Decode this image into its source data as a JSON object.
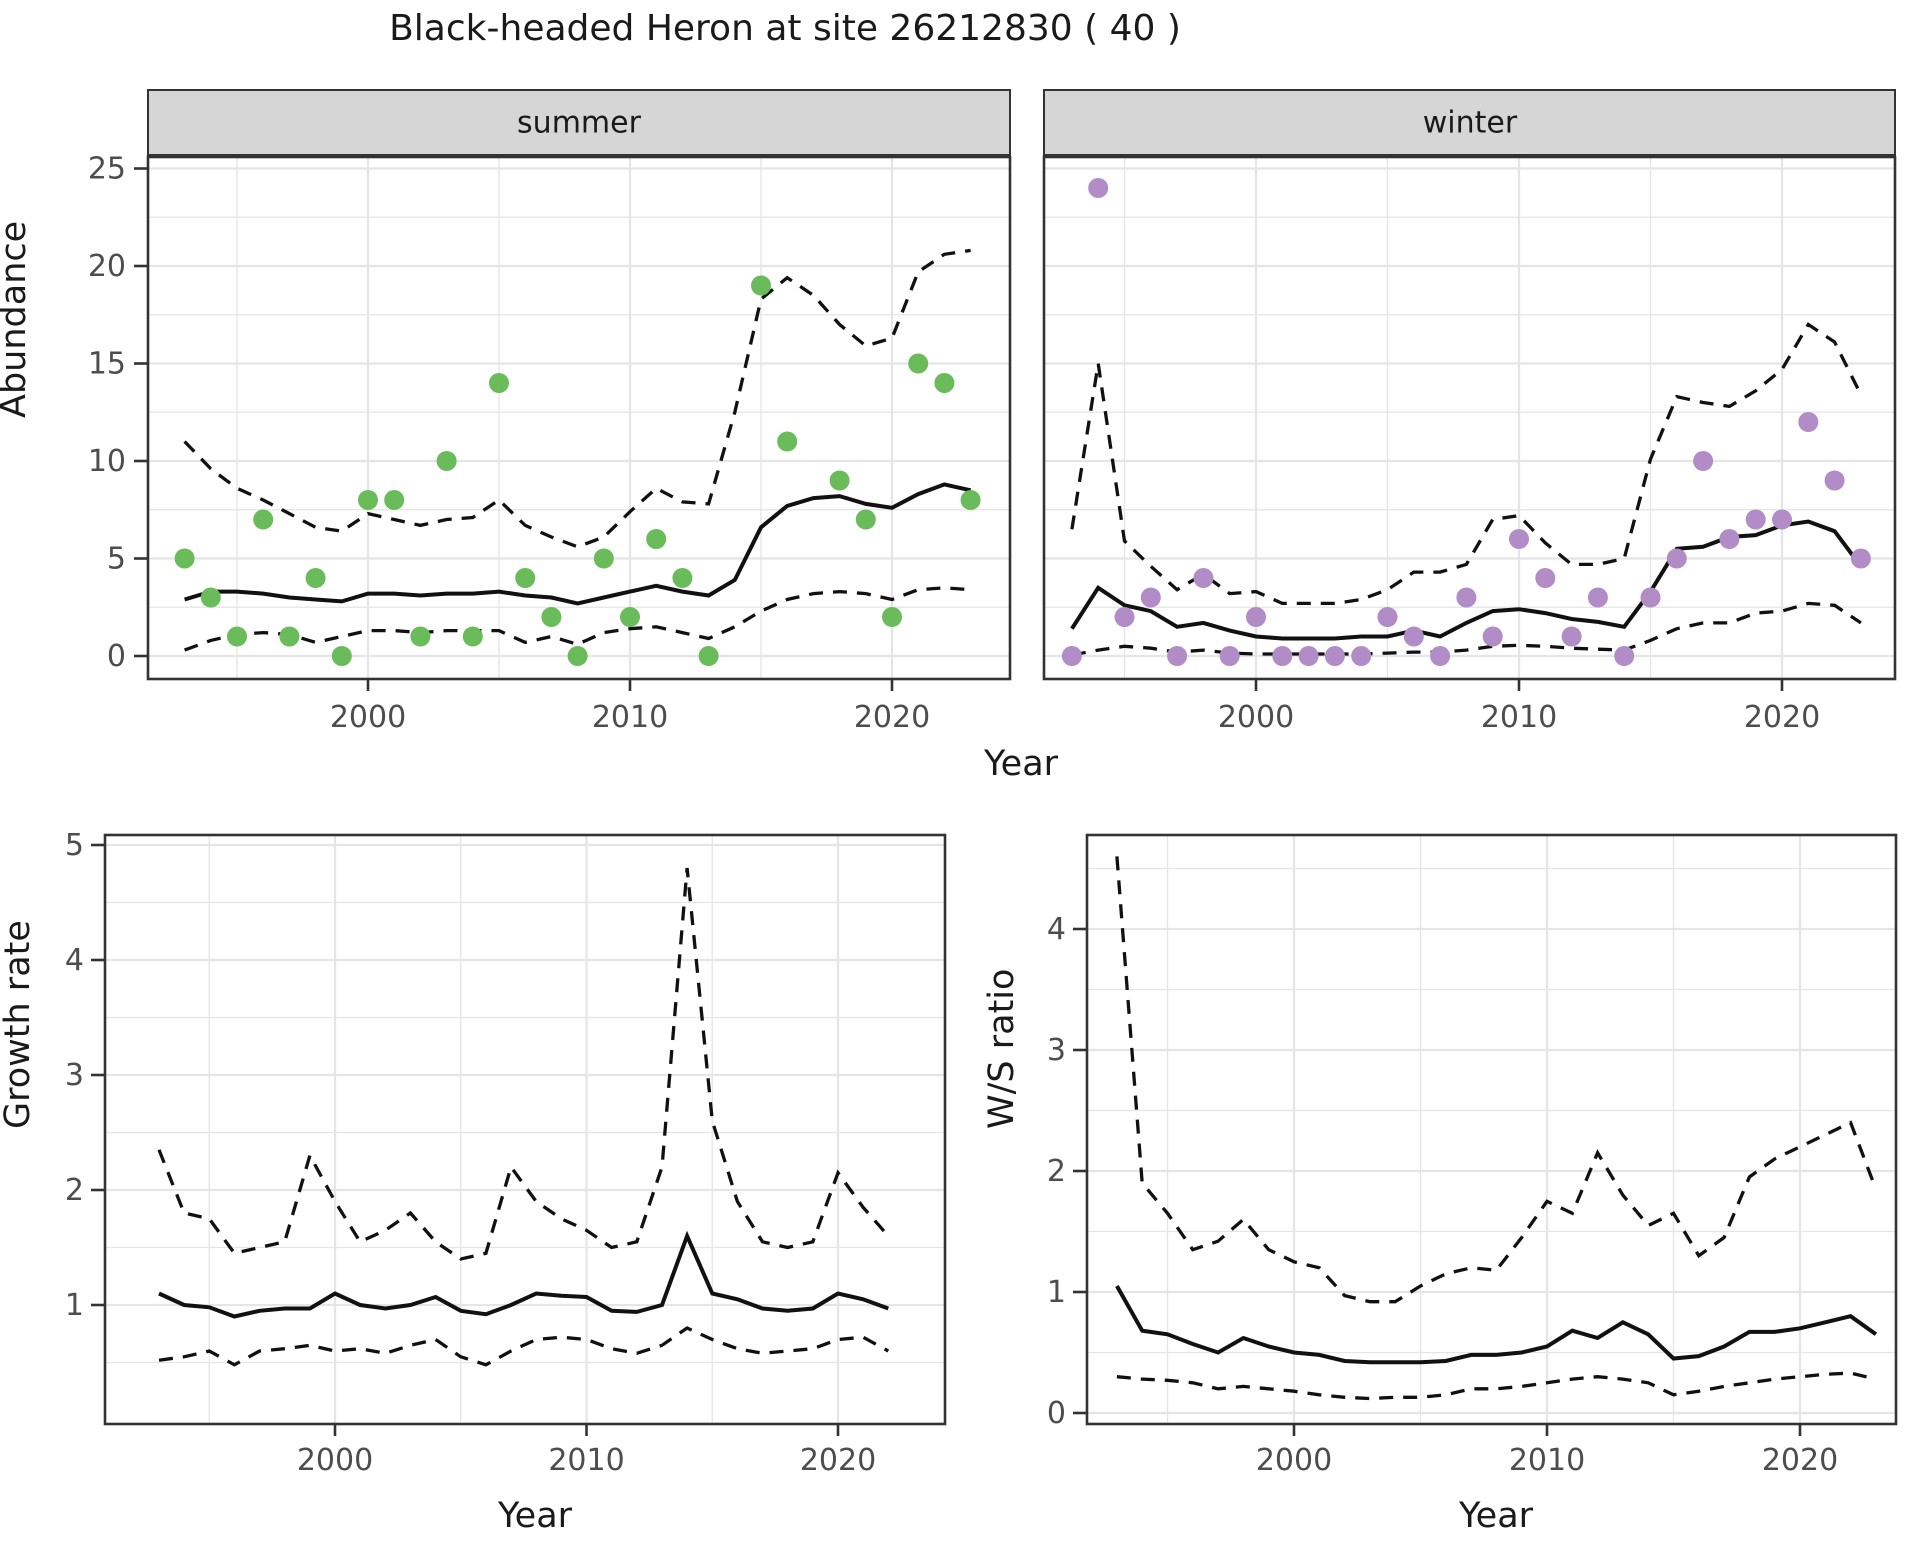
{
  "title": "Black-headed Heron at site 26212830 ( 40 )",
  "facets": {
    "summer": "summer",
    "winter": "winter"
  },
  "axis_titles": {
    "abundance": "Abundance",
    "year_top": "Year",
    "growth_rate": "Growth rate",
    "ws_ratio": "W/S ratio",
    "year_growth": "Year",
    "year_ws": "Year"
  },
  "colors": {
    "summer_point": "#6abc5b",
    "winter_point": "#b18cc6",
    "line": "#111111",
    "grid": "#e5e5e5",
    "panel_border": "#333333",
    "strip_bg": "#d6d6d6",
    "tick_label": "#4d4d4d"
  },
  "chart_data": [
    {
      "id": "abundance-summer",
      "type": "scatter",
      "facet": "summer",
      "ylabel": "Abundance",
      "xlabel": "Year",
      "x_ticks": [
        2000,
        2010,
        2020
      ],
      "x_minor": [
        1995,
        2005,
        2015
      ],
      "y_ticks": [
        0,
        5,
        10,
        15,
        20,
        25
      ],
      "y_minor": [
        2.5,
        7.5,
        12.5,
        17.5,
        22.5
      ],
      "show_y_tick_labels": true,
      "ylim": [
        -1.2,
        25.6
      ],
      "xlim": [
        1991.6,
        2024.5
      ],
      "points": {
        "years": [
          1993,
          1994,
          1995,
          1996,
          1997,
          1998,
          1999,
          2000,
          2001,
          2002,
          2003,
          2004,
          2005,
          2006,
          2007,
          2008,
          2009,
          2010,
          2011,
          2012,
          2013,
          2015,
          2016,
          2018,
          2019,
          2020,
          2021,
          2022,
          2023
        ],
        "values": [
          5,
          3,
          1,
          7,
          1,
          4,
          0,
          8,
          8,
          1,
          10,
          1,
          14,
          4,
          2,
          0,
          5,
          2,
          6,
          4,
          0,
          19,
          11,
          9,
          7,
          2,
          15,
          14,
          8
        ]
      },
      "fit": {
        "years": [
          1993,
          1994,
          1995,
          1996,
          1997,
          1998,
          1999,
          2000,
          2001,
          2002,
          2003,
          2004,
          2005,
          2006,
          2007,
          2008,
          2009,
          2010,
          2011,
          2012,
          2013,
          2014,
          2015,
          2016,
          2017,
          2018,
          2019,
          2020,
          2021,
          2022,
          2023
        ],
        "values": [
          2.9,
          3.3,
          3.3,
          3.2,
          3.0,
          2.9,
          2.8,
          3.2,
          3.2,
          3.1,
          3.2,
          3.2,
          3.3,
          3.1,
          3.0,
          2.7,
          3.0,
          3.3,
          3.6,
          3.3,
          3.1,
          3.9,
          6.6,
          7.7,
          8.1,
          8.2,
          7.8,
          7.6,
          8.3,
          8.8,
          8.5
        ]
      },
      "ci_upper": {
        "years": [
          1993,
          1994,
          1995,
          1996,
          1997,
          1998,
          1999,
          2000,
          2001,
          2002,
          2003,
          2004,
          2005,
          2006,
          2007,
          2008,
          2009,
          2010,
          2011,
          2012,
          2013,
          2014,
          2015,
          2016,
          2017,
          2018,
          2019,
          2020,
          2021,
          2022,
          2023
        ],
        "values": [
          11.0,
          9.6,
          8.6,
          8.0,
          7.3,
          6.6,
          6.4,
          7.3,
          7.0,
          6.7,
          7.0,
          7.1,
          8.0,
          6.7,
          6.1,
          5.6,
          6.1,
          7.4,
          8.6,
          7.9,
          7.8,
          12.5,
          18.3,
          19.4,
          18.5,
          17.0,
          15.9,
          16.3,
          19.7,
          20.6,
          20.8
        ]
      },
      "ci_lower": {
        "years": [
          1993,
          1994,
          1995,
          1996,
          1997,
          1998,
          1999,
          2000,
          2001,
          2002,
          2003,
          2004,
          2005,
          2006,
          2007,
          2008,
          2009,
          2010,
          2011,
          2012,
          2013,
          2014,
          2015,
          2016,
          2017,
          2018,
          2019,
          2020,
          2021,
          2022,
          2023
        ],
        "values": [
          0.3,
          0.8,
          1.1,
          1.2,
          1.1,
          0.7,
          1.0,
          1.3,
          1.3,
          1.2,
          1.3,
          1.3,
          1.3,
          0.7,
          1.0,
          0.6,
          1.2,
          1.4,
          1.5,
          1.2,
          0.9,
          1.5,
          2.3,
          2.9,
          3.2,
          3.3,
          3.2,
          2.9,
          3.4,
          3.5,
          3.4
        ]
      }
    },
    {
      "id": "abundance-winter",
      "type": "scatter",
      "facet": "winter",
      "ylabel": "Abundance",
      "xlabel": "Year",
      "x_ticks": [
        2000,
        2010,
        2020
      ],
      "x_minor": [
        1995,
        2005,
        2015
      ],
      "y_ticks": [
        0,
        5,
        10,
        15,
        20,
        25
      ],
      "y_minor": [
        2.5,
        7.5,
        12.5,
        17.5,
        22.5
      ],
      "show_y_tick_labels": false,
      "ylim": [
        -1.2,
        25.6
      ],
      "xlim": [
        1991.6,
        2024.5
      ],
      "points": {
        "years": [
          1993,
          1994,
          1995,
          1996,
          1997,
          1998,
          1999,
          2000,
          2001,
          2002,
          2003,
          2004,
          2005,
          2006,
          2007,
          2008,
          2009,
          2010,
          2011,
          2012,
          2013,
          2014,
          2015,
          2016,
          2017,
          2018,
          2019,
          2020,
          2021,
          2022,
          2023
        ],
        "values": [
          0,
          24,
          2,
          3,
          0,
          4,
          0,
          2,
          0,
          0,
          0,
          0,
          2,
          1,
          0,
          3,
          1,
          6,
          4,
          1,
          3,
          0,
          3,
          5,
          10,
          6,
          7,
          7,
          12,
          9,
          5
        ]
      },
      "fit": {
        "years": [
          1993,
          1994,
          1995,
          1996,
          1997,
          1998,
          1999,
          2000,
          2001,
          2002,
          2003,
          2004,
          2005,
          2006,
          2007,
          2008,
          2009,
          2010,
          2011,
          2012,
          2013,
          2014,
          2015,
          2016,
          2017,
          2018,
          2019,
          2020,
          2021,
          2022,
          2023
        ],
        "values": [
          1.4,
          3.5,
          2.6,
          2.3,
          1.5,
          1.7,
          1.3,
          1.0,
          0.9,
          0.9,
          0.9,
          1.0,
          1.0,
          1.3,
          1.0,
          1.7,
          2.3,
          2.4,
          2.2,
          1.9,
          1.75,
          1.5,
          3.3,
          5.5,
          5.6,
          6.1,
          6.2,
          6.7,
          6.9,
          6.4,
          4.6
        ]
      },
      "ci_upper": {
        "years": [
          1993,
          1994,
          1995,
          1996,
          1997,
          1998,
          1999,
          2000,
          2001,
          2002,
          2003,
          2004,
          2005,
          2006,
          2007,
          2008,
          2009,
          2010,
          2011,
          2012,
          2013,
          2014,
          2015,
          2016,
          2017,
          2018,
          2019,
          2020,
          2021,
          2022,
          2023
        ],
        "values": [
          6.5,
          15.0,
          5.9,
          4.6,
          3.4,
          4.2,
          3.2,
          3.3,
          2.7,
          2.7,
          2.7,
          2.9,
          3.4,
          4.3,
          4.3,
          4.7,
          7.0,
          7.2,
          5.8,
          4.7,
          4.7,
          5.0,
          10.1,
          13.3,
          13.0,
          12.8,
          13.6,
          14.7,
          17.0,
          16.1,
          13.4
        ]
      },
      "ci_lower": {
        "years": [
          1993,
          1994,
          1995,
          1996,
          1997,
          1998,
          1999,
          2000,
          2001,
          2002,
          2003,
          2004,
          2005,
          2006,
          2007,
          2008,
          2009,
          2010,
          2011,
          2012,
          2013,
          2014,
          2015,
          2016,
          2017,
          2018,
          2019,
          2020,
          2021,
          2022,
          2023
        ],
        "values": [
          0.05,
          0.3,
          0.5,
          0.4,
          0.2,
          0.3,
          0.15,
          0.1,
          0.1,
          0.1,
          0.1,
          0.1,
          0.15,
          0.2,
          0.2,
          0.3,
          0.5,
          0.55,
          0.5,
          0.4,
          0.35,
          0.3,
          0.8,
          1.4,
          1.7,
          1.7,
          2.2,
          2.3,
          2.7,
          2.6,
          1.7
        ]
      }
    },
    {
      "id": "growth-rate",
      "type": "line",
      "facet": null,
      "ylabel": "Growth rate",
      "xlabel": "Year",
      "x_ticks": [
        2000,
        2010,
        2020
      ],
      "x_minor": [
        1995,
        2005,
        2015
      ],
      "y_ticks": [
        1,
        2,
        3,
        4,
        5
      ],
      "y_minor": [
        0.5,
        1.5,
        2.5,
        3.5,
        4.5
      ],
      "show_y_tick_labels": true,
      "ylim": [
        0.35,
        5.1
      ],
      "xlim": [
        1991.6,
        2024.2
      ],
      "points": null,
      "fit": {
        "years": [
          1993,
          1994,
          1995,
          1996,
          1997,
          1998,
          1999,
          2000,
          2001,
          2002,
          2003,
          2004,
          2005,
          2006,
          2007,
          2008,
          2009,
          2010,
          2011,
          2012,
          2013,
          2014,
          2015,
          2016,
          2017,
          2018,
          2019,
          2020,
          2021,
          2022
        ],
        "values": [
          1.1,
          1.0,
          0.98,
          0.9,
          0.95,
          0.97,
          0.97,
          1.1,
          1.0,
          0.97,
          1.0,
          1.07,
          0.95,
          0.92,
          1.0,
          1.1,
          1.08,
          1.07,
          0.95,
          0.94,
          1.0,
          1.6,
          1.1,
          1.05,
          0.97,
          0.95,
          0.97,
          1.1,
          1.05,
          0.97
        ]
      },
      "ci_upper": {
        "years": [
          1993,
          1994,
          1995,
          1996,
          1997,
          1998,
          1999,
          2000,
          2001,
          2002,
          2003,
          2004,
          2005,
          2006,
          2007,
          2008,
          2009,
          2010,
          2011,
          2012,
          2013,
          2014,
          2015,
          2016,
          2017,
          2018,
          2019,
          2020,
          2021,
          2022
        ],
        "values": [
          2.35,
          1.8,
          1.75,
          1.45,
          1.5,
          1.55,
          2.3,
          1.9,
          1.55,
          1.65,
          1.8,
          1.55,
          1.4,
          1.45,
          2.2,
          1.9,
          1.75,
          1.65,
          1.5,
          1.55,
          2.2,
          4.8,
          2.6,
          1.9,
          1.55,
          1.5,
          1.55,
          2.15,
          1.85,
          1.6
        ]
      },
      "ci_lower": {
        "years": [
          1993,
          1994,
          1995,
          1996,
          1997,
          1998,
          1999,
          2000,
          2001,
          2002,
          2003,
          2004,
          2005,
          2006,
          2007,
          2008,
          2009,
          2010,
          2011,
          2012,
          2013,
          2014,
          2015,
          2016,
          2017,
          2018,
          2019,
          2020,
          2021,
          2022
        ],
        "values": [
          0.52,
          0.55,
          0.6,
          0.48,
          0.6,
          0.62,
          0.65,
          0.6,
          0.62,
          0.58,
          0.65,
          0.7,
          0.55,
          0.48,
          0.6,
          0.7,
          0.72,
          0.7,
          0.62,
          0.58,
          0.65,
          0.8,
          0.7,
          0.62,
          0.58,
          0.6,
          0.62,
          0.7,
          0.72,
          0.6
        ]
      }
    },
    {
      "id": "ws-ratio",
      "type": "line",
      "facet": null,
      "ylabel": "W/S ratio",
      "xlabel": "Year",
      "x_ticks": [
        2000,
        2010,
        2020
      ],
      "x_minor": [
        1995,
        2005,
        2015
      ],
      "y_ticks": [
        0,
        1,
        2,
        3,
        4
      ],
      "y_minor": [
        0.5,
        1.5,
        2.5,
        3.5,
        4.5
      ],
      "show_y_tick_labels": true,
      "ylim": [
        -0.1,
        4.8
      ],
      "xlim": [
        1991.8,
        2024.9
      ],
      "points": null,
      "fit": {
        "years": [
          1993,
          1994,
          1995,
          1996,
          1997,
          1998,
          1999,
          2000,
          2001,
          2002,
          2003,
          2004,
          2005,
          2006,
          2007,
          2008,
          2009,
          2010,
          2011,
          2012,
          2013,
          2014,
          2015,
          2016,
          2017,
          2018,
          2019,
          2020,
          2021,
          2022,
          2023
        ],
        "values": [
          1.05,
          0.68,
          0.65,
          0.57,
          0.5,
          0.62,
          0.55,
          0.5,
          0.48,
          0.43,
          0.42,
          0.42,
          0.42,
          0.43,
          0.48,
          0.48,
          0.5,
          0.55,
          0.68,
          0.62,
          0.75,
          0.65,
          0.45,
          0.47,
          0.55,
          0.67,
          0.67,
          0.7,
          0.75,
          0.8,
          0.65
        ]
      },
      "ci_upper": {
        "years": [
          1993,
          1994,
          1995,
          1996,
          1997,
          1998,
          1999,
          2000,
          2001,
          2002,
          2003,
          2004,
          2005,
          2006,
          2007,
          2008,
          2009,
          2010,
          2011,
          2012,
          2013,
          2014,
          2015,
          2016,
          2017,
          2018,
          2019,
          2020,
          2021,
          2022,
          2023
        ],
        "values": [
          4.6,
          1.9,
          1.65,
          1.35,
          1.42,
          1.6,
          1.35,
          1.25,
          1.2,
          0.97,
          0.92,
          0.92,
          1.05,
          1.15,
          1.2,
          1.18,
          1.45,
          1.75,
          1.65,
          2.15,
          1.8,
          1.55,
          1.65,
          1.3,
          1.45,
          1.95,
          2.1,
          2.2,
          2.3,
          2.4,
          1.85
        ]
      },
      "ci_lower": {
        "years": [
          1993,
          1994,
          1995,
          1996,
          1997,
          1998,
          1999,
          2000,
          2001,
          2002,
          2003,
          2004,
          2005,
          2006,
          2007,
          2008,
          2009,
          2010,
          2011,
          2012,
          2013,
          2014,
          2015,
          2016,
          2017,
          2018,
          2019,
          2020,
          2021,
          2022,
          2023
        ],
        "values": [
          0.3,
          0.28,
          0.27,
          0.25,
          0.2,
          0.22,
          0.2,
          0.18,
          0.15,
          0.13,
          0.12,
          0.13,
          0.13,
          0.15,
          0.2,
          0.2,
          0.22,
          0.25,
          0.28,
          0.3,
          0.28,
          0.25,
          0.15,
          0.18,
          0.22,
          0.25,
          0.28,
          0.3,
          0.32,
          0.33,
          0.28
        ]
      }
    }
  ]
}
